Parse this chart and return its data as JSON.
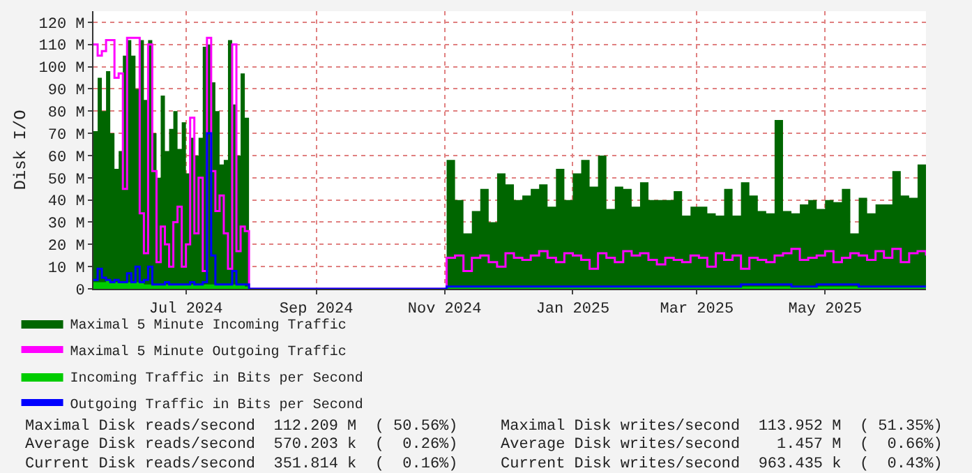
{
  "chart_data": {
    "type": "area",
    "ylabel": "Disk I/O",
    "x": [
      "2024-05-18",
      "2024-05-20",
      "2024-05-22",
      "2024-05-24",
      "2024-05-26",
      "2024-05-28",
      "2024-05-30",
      "2024-06-01",
      "2024-06-03",
      "2024-06-05",
      "2024-06-07",
      "2024-06-09",
      "2024-06-11",
      "2024-06-13",
      "2024-06-15",
      "2024-06-17",
      "2024-06-19",
      "2024-06-21",
      "2024-06-23",
      "2024-06-25",
      "2024-06-27",
      "2024-06-29",
      "2024-07-01",
      "2024-07-03",
      "2024-07-05",
      "2024-07-07",
      "2024-07-09",
      "2024-07-11",
      "2024-07-13",
      "2024-07-15",
      "2024-07-17",
      "2024-07-19",
      "2024-07-21",
      "2024-07-23",
      "2024-07-25",
      "2024-07-27",
      "2024-07-29",
      "2024-07-31",
      "2024-11-01",
      "2024-11-02",
      "2024-11-06",
      "2024-11-10",
      "2024-11-14",
      "2024-11-18",
      "2024-11-22",
      "2024-11-26",
      "2024-11-30",
      "2024-12-04",
      "2024-12-08",
      "2024-12-12",
      "2024-12-16",
      "2024-12-20",
      "2024-12-24",
      "2024-12-28",
      "2025-01-01",
      "2025-01-05",
      "2025-01-09",
      "2025-01-13",
      "2025-01-17",
      "2025-01-21",
      "2025-01-25",
      "2025-01-29",
      "2025-02-02",
      "2025-02-06",
      "2025-02-10",
      "2025-02-14",
      "2025-02-18",
      "2025-02-22",
      "2025-02-26",
      "2025-03-02",
      "2025-03-06",
      "2025-03-10",
      "2025-03-14",
      "2025-03-18",
      "2025-03-22",
      "2025-03-26",
      "2025-03-30",
      "2025-04-03",
      "2025-04-07",
      "2025-04-11",
      "2025-04-15",
      "2025-04-19",
      "2025-04-23",
      "2025-04-27",
      "2025-05-01",
      "2025-05-05",
      "2025-05-09",
      "2025-05-13",
      "2025-05-17",
      "2025-05-21",
      "2025-05-25",
      "2025-05-29",
      "2025-06-02",
      "2025-06-06",
      "2025-06-10",
      "2025-06-14",
      "2025-06-18"
    ],
    "series": [
      {
        "name": "Maximal 5 Minute Incoming Traffic",
        "color": "#006600",
        "values": [
          71,
          95,
          80,
          98,
          70,
          54,
          62,
          105,
          112,
          105,
          90,
          112,
          85,
          112,
          70,
          50,
          87,
          62,
          72,
          80,
          63,
          75,
          52,
          68,
          60,
          68,
          109,
          110,
          93,
          80,
          56,
          58,
          112,
          83,
          60,
          97,
          77,
          0,
          0,
          58,
          40,
          25,
          35,
          45,
          30,
          52,
          47,
          40,
          42,
          45,
          47,
          37,
          54,
          40,
          52,
          58,
          46,
          60,
          36,
          46,
          45,
          37,
          48,
          40,
          40,
          40,
          44,
          33,
          37,
          37,
          34,
          33,
          45,
          33,
          48,
          42,
          35,
          34,
          76,
          35,
          34,
          38,
          40,
          36,
          40,
          39,
          45,
          25,
          41,
          34,
          38,
          38,
          53,
          42,
          41,
          56,
          31
        ]
      },
      {
        "name": "Maximal 5 Minute Outgoing Traffic",
        "type": "step",
        "color": "#ff00ff",
        "values": [
          110,
          105,
          107,
          112,
          112,
          95,
          97,
          45,
          113,
          113,
          113,
          34,
          16,
          110,
          53,
          12,
          28,
          20,
          10,
          30,
          37,
          10,
          20,
          77,
          25,
          50,
          8,
          113,
          53,
          35,
          42,
          25,
          9,
          110,
          17,
          28,
          26,
          0,
          0,
          14,
          15,
          8,
          14,
          15,
          12,
          10,
          16,
          14,
          13,
          15,
          17,
          14,
          12,
          16,
          15,
          13,
          9,
          16,
          14,
          12,
          17,
          15,
          16,
          13,
          11,
          14,
          13,
          12,
          15,
          14,
          10,
          16,
          13,
          15,
          9,
          14,
          13,
          12,
          15,
          16,
          18,
          13,
          14,
          15,
          17,
          12,
          14,
          16,
          15,
          13,
          17,
          14,
          18,
          12,
          16,
          17,
          15
        ]
      },
      {
        "name": "Incoming Traffic in Bits per Second",
        "color": "#00cc00",
        "values": [
          3,
          3,
          3,
          4,
          3,
          3,
          3,
          3,
          3,
          3,
          3,
          3,
          2,
          2,
          2,
          2,
          2,
          2,
          2,
          2,
          2,
          2,
          2,
          2,
          2,
          2,
          2,
          2,
          2,
          2,
          2,
          2,
          2,
          2,
          2,
          2,
          1,
          0,
          0,
          1,
          1,
          1,
          1,
          1,
          1,
          1,
          1,
          1,
          1,
          1,
          1,
          1,
          1,
          1,
          1,
          1,
          1,
          1,
          1,
          1,
          1,
          1,
          1,
          1,
          1,
          1,
          1,
          1,
          1,
          1,
          1,
          1,
          1,
          1,
          1,
          1,
          1,
          1,
          1,
          1,
          1,
          1,
          1,
          1,
          1,
          1,
          1,
          1,
          1,
          1,
          1,
          1,
          1,
          1,
          1,
          1,
          1
        ]
      },
      {
        "name": "Outgoing Traffic in Bits per Second",
        "type": "step",
        "color": "#0000ff",
        "values": [
          4,
          9,
          5,
          4,
          3,
          4,
          3,
          3,
          7,
          3,
          10,
          3,
          4,
          10,
          2,
          2,
          2,
          3,
          2,
          2,
          2,
          2,
          2,
          3,
          2,
          2,
          3,
          70,
          15,
          2,
          2,
          2,
          2,
          8,
          2,
          2,
          2,
          0,
          0,
          1,
          1,
          1,
          1,
          1,
          1,
          1,
          1,
          1,
          1,
          1,
          1,
          1,
          1,
          1,
          1,
          1,
          1,
          1,
          1,
          1,
          1,
          1,
          1,
          1,
          1,
          1,
          1,
          1,
          1,
          1,
          1,
          1,
          1,
          1,
          2,
          2,
          2,
          2,
          2,
          2,
          1,
          1,
          1,
          2,
          2,
          2,
          2,
          2,
          1,
          1,
          1,
          1,
          1,
          1,
          1,
          1,
          1
        ]
      }
    ],
    "xlim": [
      "2024-05-18",
      "2025-06-18"
    ],
    "xticks": [
      {
        "value": "2024-07-01",
        "label": "Jul 2024"
      },
      {
        "value": "2024-09-01",
        "label": "Sep 2024"
      },
      {
        "value": "2024-11-01",
        "label": "Nov 2024"
      },
      {
        "value": "2025-01-01",
        "label": "Jan 2025"
      },
      {
        "value": "2025-03-01",
        "label": "Mar 2025"
      },
      {
        "value": "2025-05-01",
        "label": "May 2025"
      }
    ],
    "ylim": [
      0,
      125
    ],
    "yticks": [
      0,
      {
        "value": 10,
        "label": "10 M"
      },
      {
        "value": 20,
        "label": "20 M"
      },
      {
        "value": 30,
        "label": "30 M"
      },
      {
        "value": 40,
        "label": "40 M"
      },
      {
        "value": 50,
        "label": "50 M"
      },
      {
        "value": 60,
        "label": "60 M"
      },
      {
        "value": 70,
        "label": "70 M"
      },
      {
        "value": 80,
        "label": "80 M"
      },
      {
        "value": 90,
        "label": "90 M"
      },
      {
        "value": 100,
        "label": "100 M"
      },
      {
        "value": 110,
        "label": "110 M"
      },
      {
        "value": 120,
        "label": "120 M"
      }
    ],
    "grid": true,
    "legend": "bottom",
    "annotations": [
      "Maximal Disk reads/second  112.209 M  ( 50.56%)",
      "Maximal Disk writes/second  113.952 M  ( 51.35%)",
      "Average Disk reads/second  570.203 k  (  0.26%)",
      "Average Disk writes/second    1.457 M  (  0.66%)",
      "Current Disk reads/second  351.814 k  (  0.16%)",
      "Current Disk writes/second  963.435 k  (  0.43%)"
    ]
  }
}
